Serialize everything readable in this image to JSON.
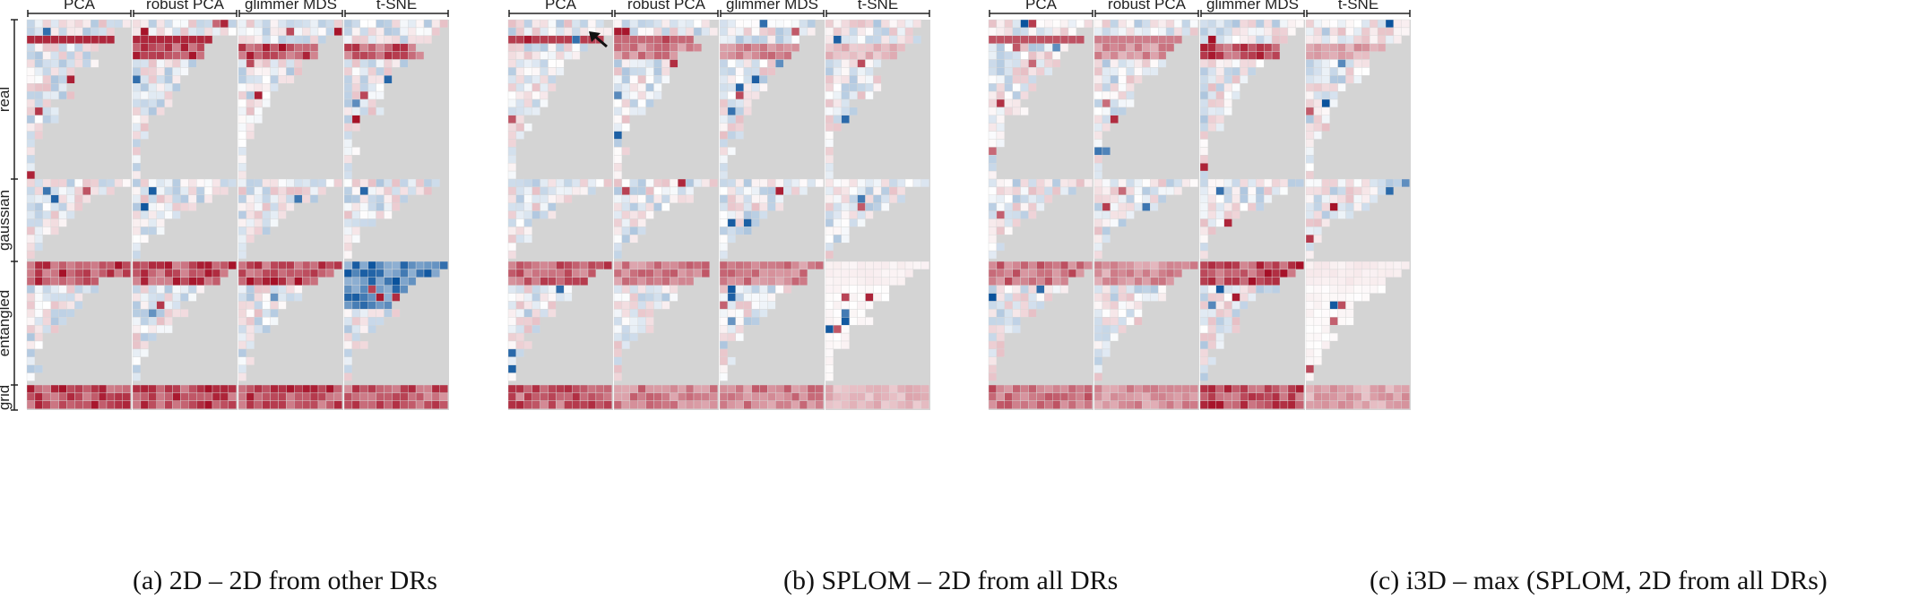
{
  "chart_data": {
    "type": "heatmap",
    "title": "",
    "method_labels": [
      "PCA",
      "robust PCA",
      "glimmer MDS",
      "t-SNE"
    ],
    "group_labels": [
      "real",
      "gaussian",
      "entangled",
      "grid"
    ],
    "color_scale": {
      "negative": "#08519c",
      "zero": "#ffffff",
      "positive": "#a50f26",
      "missing": "#d4d4d4"
    },
    "panels": [
      {
        "caption": "(a)  2D – 2D from other DRs",
        "seed": 11,
        "emphasis": [
          1.0,
          1.0,
          1.0,
          0.9
        ],
        "entangled_blue_tsne": true,
        "arrow": false
      },
      {
        "caption": "(b)  SPLOM – 2D from all DRs",
        "seed": 23,
        "emphasis": [
          0.9,
          0.7,
          0.7,
          0.4
        ],
        "entangled_blue_tsne": false,
        "arrow": true
      },
      {
        "caption": "(c)  i3D – max (SPLOM, 2D from all DRs)",
        "seed": 37,
        "emphasis": [
          0.8,
          0.6,
          1.0,
          0.5
        ],
        "entangled_blue_tsne": false,
        "arrow": false
      }
    ]
  },
  "captions": [
    "(a)  2D – 2D from other DRs",
    "(b)  SPLOM – 2D from all DRs",
    "(c)  i3D – max (SPLOM, 2D from all DRs)"
  ]
}
